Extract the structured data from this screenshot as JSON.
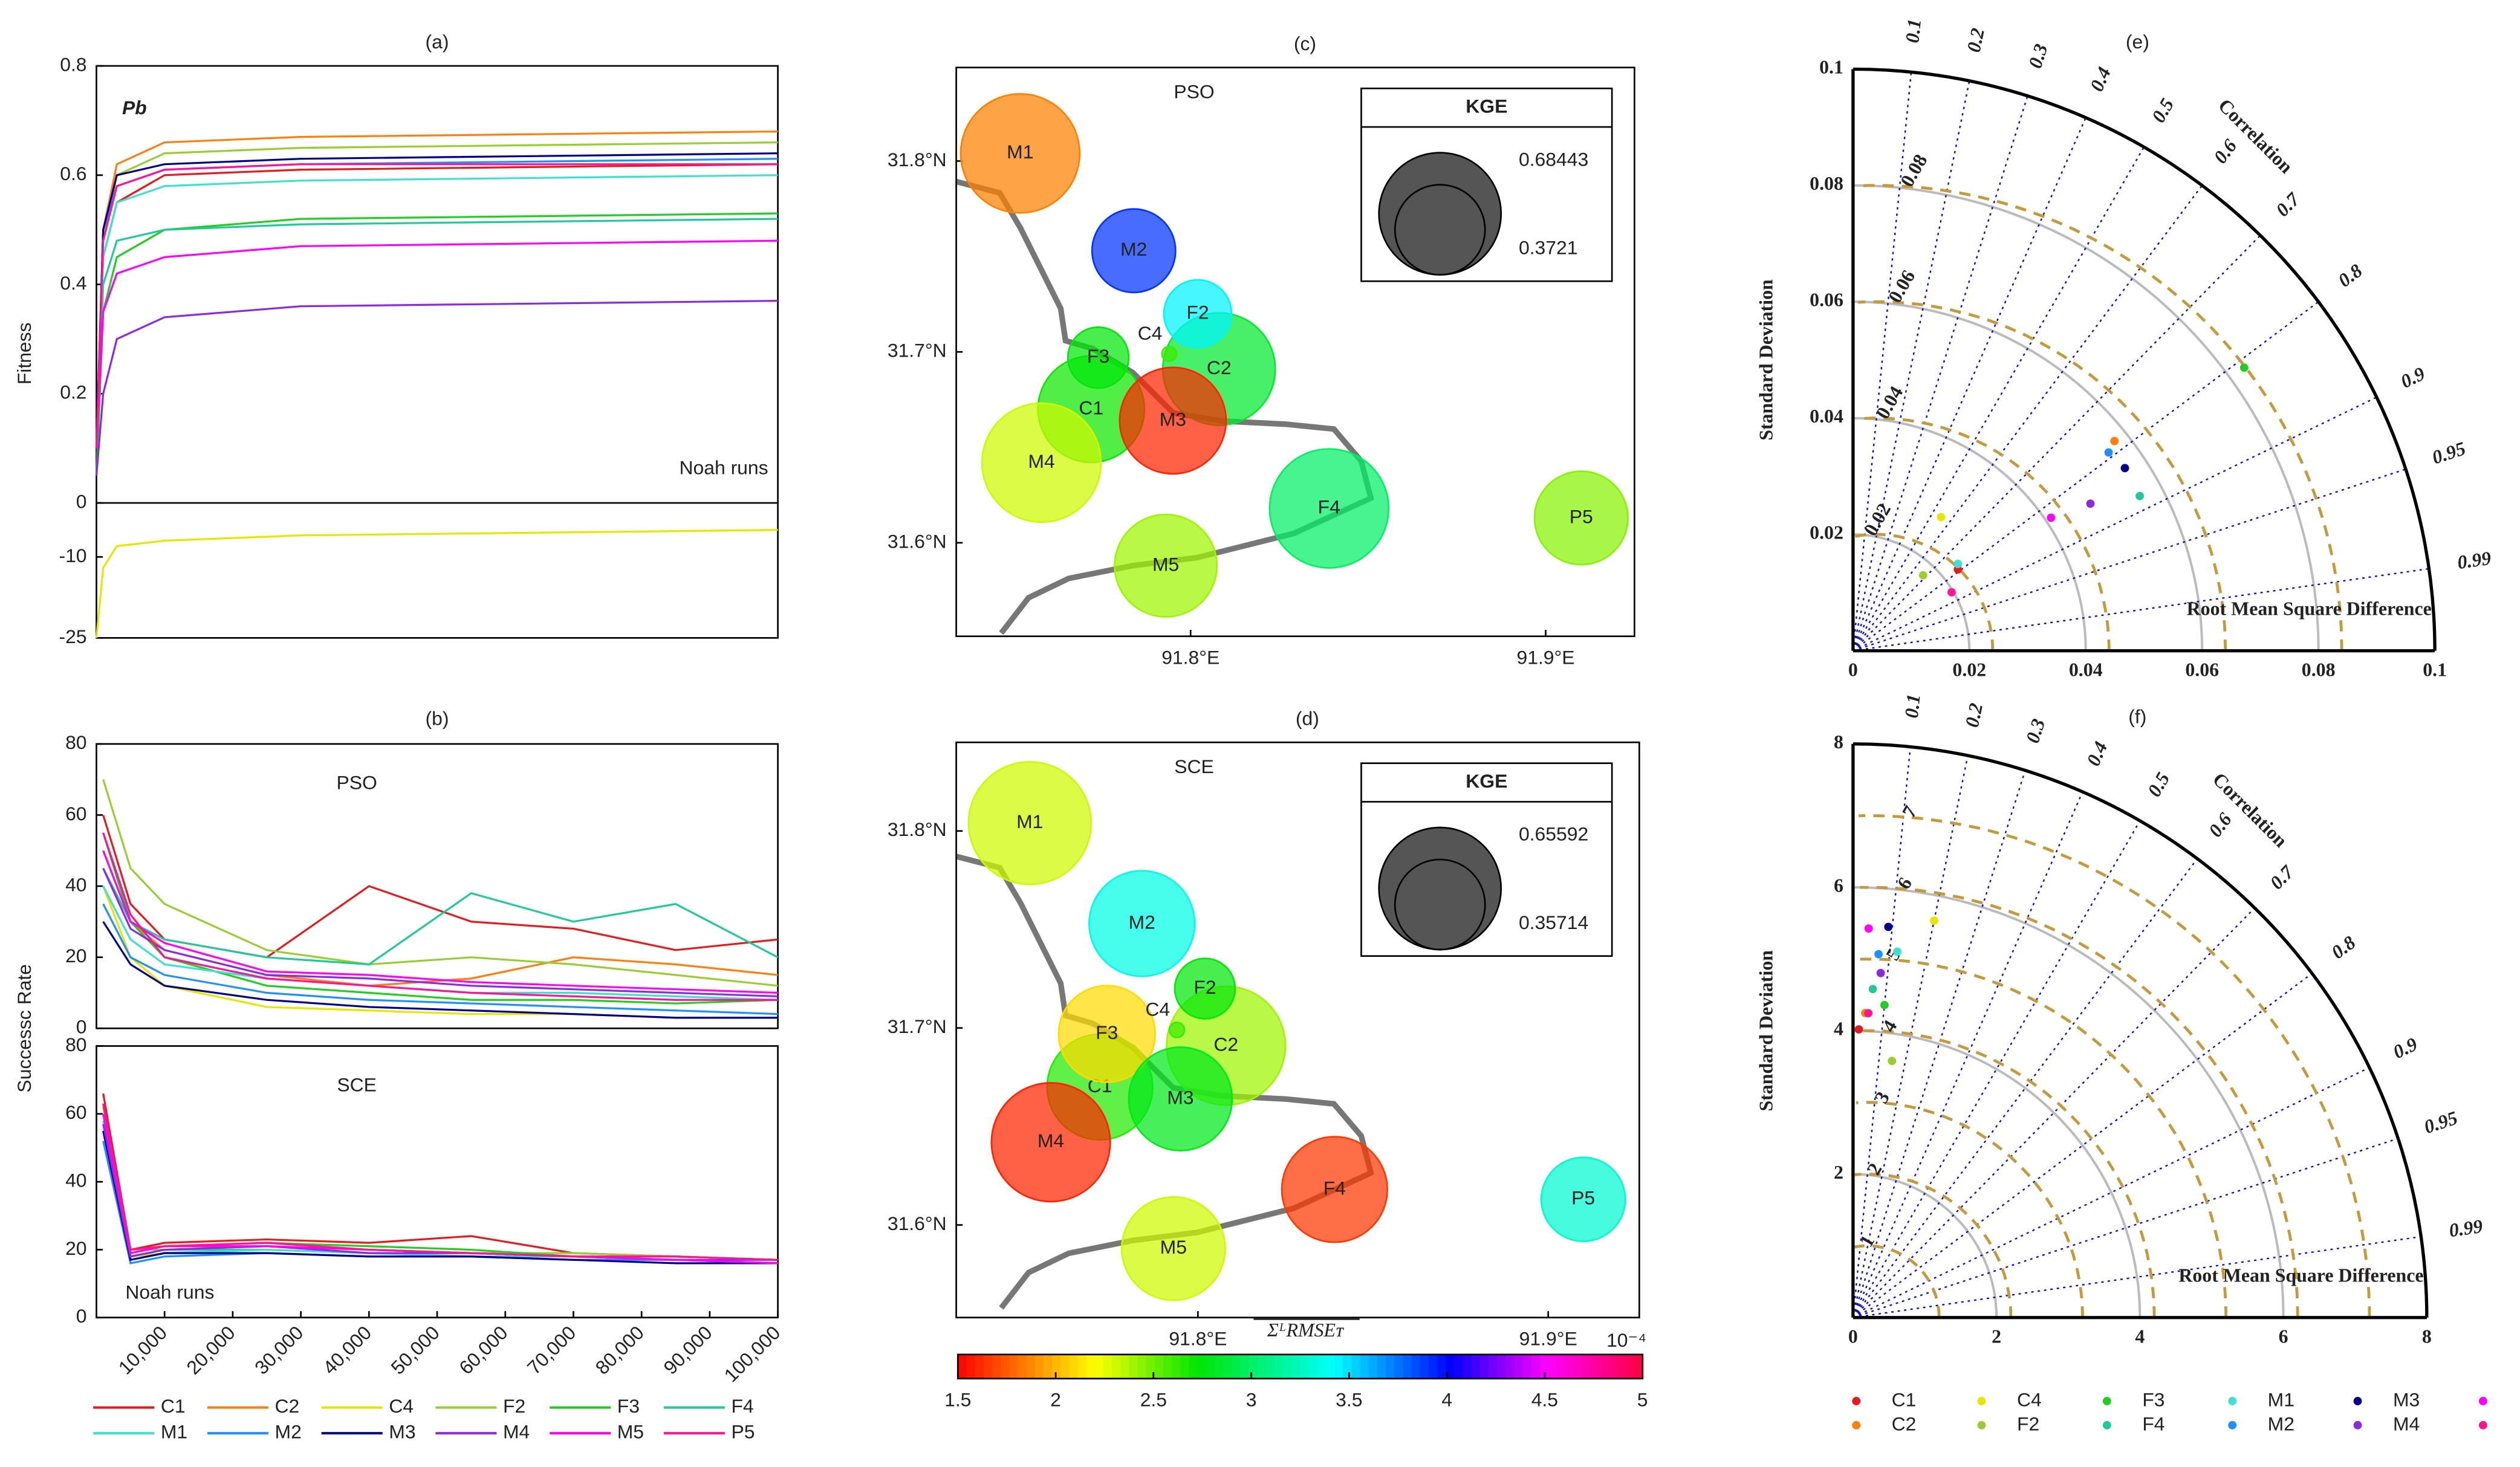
{
  "chart_data": [
    {
      "type": "line",
      "titles": [
        "(a)",
        "(b)"
      ],
      "x": [
        0,
        1000,
        3000,
        10000,
        30000,
        100000
      ],
      "x2": [
        1000,
        5000,
        10000,
        25000,
        40000,
        55000,
        70000,
        85000,
        100000
      ],
      "xlim": [
        0,
        100000
      ],
      "xticks": [
        {
          "value": 10000,
          "label": "10,000"
        },
        {
          "value": 20000,
          "label": "20,000"
        },
        {
          "value": 30000,
          "label": "30,000"
        },
        {
          "value": 40000,
          "label": "40,000"
        },
        {
          "value": 50000,
          "label": "50,000"
        },
        {
          "value": 60000,
          "label": "60,000"
        },
        {
          "value": 70000,
          "label": "70,000"
        },
        {
          "value": 80000,
          "label": "80,000"
        },
        {
          "value": 90000,
          "label": "90,000"
        },
        {
          "value": 100000,
          "label": "100,000"
        }
      ],
      "ylabel": "Fitness",
      "ylim": [
        0,
        0.8
      ],
      "yticks": [
        0,
        0.2,
        0.4,
        0.6,
        0.8
      ],
      "ylim_lower": [
        -25,
        0
      ],
      "yticks_lower": [
        -10,
        -25
      ],
      "annotation": "Pb",
      "note": "Noah runs",
      "ylabel2": "Successc Rate",
      "ylim2": [
        0,
        80
      ],
      "yticks2": [
        0,
        20,
        40,
        60,
        80
      ],
      "panels": [
        "PSO",
        "SCE"
      ],
      "series": [
        {
          "name": "C1",
          "color": "#e41a1c",
          "fitness": [
            0.1,
            0.45,
            0.55,
            0.6,
            0.61,
            0.62
          ],
          "pso": [
            60,
            35,
            25,
            20,
            40,
            30,
            28,
            22,
            25
          ],
          "sce": [
            66,
            20,
            22,
            23,
            22,
            24,
            19,
            18,
            17
          ]
        },
        {
          "name": "C2",
          "color": "#ff7f0e",
          "fitness": [
            0.1,
            0.5,
            0.62,
            0.66,
            0.67,
            0.68
          ],
          "pso": [
            50,
            30,
            22,
            15,
            12,
            14,
            20,
            18,
            15
          ],
          "sce": [
            60,
            19,
            21,
            21,
            20,
            19,
            18,
            18,
            17
          ]
        },
        {
          "name": "C4",
          "color": "#e6e600",
          "axis": "lower",
          "fitness": [
            -25,
            -12,
            -8,
            -7,
            -6,
            -5
          ],
          "pso": [
            40,
            20,
            12,
            6,
            5,
            4,
            4,
            3,
            3
          ],
          "sce": [
            58,
            18,
            19,
            20,
            19,
            18,
            17,
            17,
            16
          ]
        },
        {
          "name": "F2",
          "color": "#9acd32",
          "fitness": [
            0.1,
            0.48,
            0.6,
            0.64,
            0.65,
            0.66
          ],
          "pso": [
            70,
            45,
            35,
            22,
            18,
            20,
            18,
            15,
            12
          ],
          "sce": [
            62,
            20,
            20,
            21,
            20,
            19,
            19,
            18,
            17
          ]
        },
        {
          "name": "F3",
          "color": "#22cc22",
          "fitness": [
            0.05,
            0.35,
            0.45,
            0.5,
            0.52,
            0.53
          ],
          "pso": [
            55,
            30,
            20,
            12,
            10,
            8,
            8,
            7,
            8
          ],
          "sce": [
            60,
            19,
            21,
            22,
            21,
            20,
            18,
            18,
            17
          ]
        },
        {
          "name": "F4",
          "color": "#20c997",
          "fitness": [
            0.1,
            0.4,
            0.48,
            0.5,
            0.51,
            0.52
          ],
          "pso": [
            45,
            30,
            25,
            20,
            18,
            38,
            30,
            35,
            20
          ],
          "sce": [
            55,
            18,
            20,
            20,
            19,
            19,
            18,
            17,
            16
          ]
        },
        {
          "name": "M1",
          "color": "#40e0d0",
          "fitness": [
            0.1,
            0.45,
            0.55,
            0.58,
            0.59,
            0.6
          ],
          "pso": [
            40,
            25,
            18,
            14,
            12,
            10,
            10,
            9,
            8
          ],
          "sce": [
            58,
            17,
            19,
            20,
            19,
            18,
            18,
            17,
            16
          ]
        },
        {
          "name": "M2",
          "color": "#1e90ff",
          "fitness": [
            0.1,
            0.5,
            0.58,
            0.61,
            0.62,
            0.63
          ],
          "pso": [
            35,
            20,
            15,
            10,
            8,
            7,
            6,
            5,
            4
          ],
          "sce": [
            52,
            16,
            18,
            19,
            18,
            18,
            17,
            17,
            16
          ]
        },
        {
          "name": "M3",
          "color": "#00008b",
          "fitness": [
            0.1,
            0.5,
            0.6,
            0.62,
            0.63,
            0.64
          ],
          "pso": [
            30,
            18,
            12,
            8,
            6,
            5,
            4,
            3,
            3
          ],
          "sce": [
            55,
            17,
            19,
            19,
            18,
            18,
            17,
            16,
            16
          ]
        },
        {
          "name": "M4",
          "color": "#8a2be2",
          "fitness": [
            0.05,
            0.2,
            0.3,
            0.34,
            0.36,
            0.37
          ],
          "pso": [
            45,
            28,
            22,
            15,
            14,
            12,
            11,
            10,
            9
          ],
          "sce": [
            57,
            18,
            20,
            21,
            19,
            19,
            18,
            17,
            17
          ]
        },
        {
          "name": "M5",
          "color": "#ff00ff",
          "fitness": [
            0.1,
            0.35,
            0.42,
            0.45,
            0.47,
            0.48
          ],
          "pso": [
            50,
            30,
            24,
            16,
            15,
            13,
            12,
            11,
            10
          ],
          "sce": [
            60,
            19,
            21,
            21,
            20,
            19,
            18,
            17,
            16
          ]
        },
        {
          "name": "P5",
          "color": "#ff1493",
          "fitness": [
            0.1,
            0.48,
            0.58,
            0.61,
            0.62,
            0.62
          ],
          "pso": [
            55,
            32,
            20,
            14,
            12,
            10,
            9,
            8,
            8
          ],
          "sce": [
            63,
            20,
            21,
            22,
            20,
            19,
            18,
            18,
            17
          ]
        }
      ]
    },
    {
      "type": "bubble",
      "title": "(c)",
      "label": "PSO",
      "xlim": [
        91.734,
        91.925
      ],
      "ylim": [
        31.551,
        31.849
      ],
      "xticks": [
        {
          "value": 91.8,
          "label": "91.8°E"
        },
        {
          "value": 91.9,
          "label": "91.9°E"
        }
      ],
      "yticks": [
        {
          "value": 31.6,
          "label": "31.6°N"
        },
        {
          "value": 31.7,
          "label": "31.7°N"
        },
        {
          "value": 31.8,
          "label": "31.8°N"
        }
      ],
      "size_title": "KGE",
      "size_legend": [
        0.68443,
        0.3721
      ],
      "points": [
        {
          "name": "M1",
          "lon": 91.752,
          "lat": 31.804,
          "rmse": 1.85,
          "kge": 0.65
        },
        {
          "name": "M2",
          "lon": 91.784,
          "lat": 31.753,
          "rmse": 3.9,
          "kge": 0.32
        },
        {
          "name": "C2",
          "lon": 91.808,
          "lat": 31.691,
          "rmse": 2.85,
          "kge": 0.58
        },
        {
          "name": "F2",
          "lon": 91.802,
          "lat": 31.72,
          "rmse": 3.45,
          "kge": 0.21
        },
        {
          "name": "C1",
          "lon": 91.772,
          "lat": 31.67,
          "rmse": 2.7,
          "kge": 0.52
        },
        {
          "name": "F3",
          "lon": 91.774,
          "lat": 31.697,
          "rmse": 2.75,
          "kge": 0.17
        },
        {
          "name": "M3",
          "lon": 91.795,
          "lat": 31.664,
          "rmse": 1.6,
          "kge": 0.52
        },
        {
          "name": "M4",
          "lon": 91.758,
          "lat": 31.642,
          "rmse": 2.3,
          "kge": 0.65
        },
        {
          "name": "F4",
          "lon": 91.839,
          "lat": 31.618,
          "rmse": 3.0,
          "kge": 0.65
        },
        {
          "name": "P5",
          "lon": 91.91,
          "lat": 31.613,
          "rmse": 2.45,
          "kge": 0.4
        },
        {
          "name": "M5",
          "lon": 91.793,
          "lat": 31.588,
          "rmse": 2.4,
          "kge": 0.48
        },
        {
          "name": "C4",
          "lon": 91.794,
          "lat": 31.699,
          "rmse": 2.6,
          "kge": 0.01
        }
      ]
    },
    {
      "type": "bubble",
      "title": "(d)",
      "label": "SCE",
      "xlim": [
        91.731,
        91.926
      ],
      "ylim": [
        31.553,
        31.845
      ],
      "xticks": [
        {
          "value": 91.8,
          "label": "91.8°E"
        },
        {
          "value": 91.9,
          "label": "91.9°E"
        }
      ],
      "yticks": [
        {
          "value": 31.6,
          "label": "31.6°N"
        },
        {
          "value": 31.7,
          "label": "31.7°N"
        },
        {
          "value": 31.8,
          "label": "31.8°N"
        }
      ],
      "size_title": "KGE",
      "size_legend": [
        0.65592,
        0.35714
      ],
      "points": [
        {
          "name": "M1",
          "lon": 91.752,
          "lat": 31.804,
          "rmse": 2.3,
          "kge": 0.66
        },
        {
          "name": "M2",
          "lon": 91.784,
          "lat": 31.753,
          "rmse": 3.35,
          "kge": 0.49
        },
        {
          "name": "C2",
          "lon": 91.808,
          "lat": 31.691,
          "rmse": 2.4,
          "kge": 0.62
        },
        {
          "name": "F2",
          "lon": 91.802,
          "lat": 31.72,
          "rmse": 2.75,
          "kge": 0.16
        },
        {
          "name": "C1",
          "lon": 91.772,
          "lat": 31.67,
          "rmse": 2.65,
          "kge": 0.49
        },
        {
          "name": "F3",
          "lon": 91.774,
          "lat": 31.697,
          "rmse": 2.1,
          "kge": 0.41
        },
        {
          "name": "M3",
          "lon": 91.795,
          "lat": 31.664,
          "rmse": 2.8,
          "kge": 0.47
        },
        {
          "name": "M4",
          "lon": 91.758,
          "lat": 31.642,
          "rmse": 1.6,
          "kge": 0.62
        },
        {
          "name": "F4",
          "lon": 91.839,
          "lat": 31.618,
          "rmse": 1.65,
          "kge": 0.49
        },
        {
          "name": "P5",
          "lon": 91.91,
          "lat": 31.613,
          "rmse": 3.3,
          "kge": 0.31
        },
        {
          "name": "M5",
          "lon": 91.793,
          "lat": 31.588,
          "rmse": 2.3,
          "kge": 0.47
        },
        {
          "name": "C4",
          "lon": 91.794,
          "lat": 31.699,
          "rmse": 2.6,
          "kge": 0.01
        }
      ]
    },
    {
      "type": "taylor",
      "titles": [
        "(e)",
        "(f)"
      ],
      "ylabel": "Standard Deviation",
      "rlabel": "Correlation",
      "rmsd_label": "Root Mean Square Difference",
      "corr_ticks": [
        0.1,
        0.2,
        0.3,
        0.4,
        0.5,
        0.6,
        0.7,
        0.8,
        0.9,
        0.95,
        0.99
      ],
      "e": {
        "rlim": [
          0,
          0.1
        ],
        "ticks": [
          0,
          0.02,
          0.04,
          0.06,
          0.08,
          0.1
        ],
        "rmsd_ticks": [
          0.02,
          0.04,
          0.06,
          0.08
        ],
        "reference": 0.004
      },
      "f": {
        "rlim": [
          0,
          8
        ],
        "ticks": [
          0,
          2,
          4,
          6,
          8
        ],
        "rmsd_ticks": [
          1,
          2,
          3,
          4,
          5,
          6,
          7
        ],
        "reference": 0.2
      },
      "series": [
        {
          "name": "C1",
          "color": "#e41a1c",
          "e": [
            0.0228,
            0.79
          ],
          "f": [
            4.02,
            0.02
          ]
        },
        {
          "name": "C2",
          "color": "#ff7f0e",
          "e": [
            0.0576,
            0.78
          ],
          "f": [
            4.25,
            0.04
          ]
        },
        {
          "name": "C4",
          "color": "#e6e600",
          "e": [
            0.0275,
            0.55
          ],
          "f": [
            5.65,
            0.2
          ]
        },
        {
          "name": "F2",
          "color": "#9acd32",
          "e": [
            0.0177,
            0.68
          ],
          "f": [
            3.62,
            0.15
          ]
        },
        {
          "name": "F3",
          "color": "#22cc22",
          "e": [
            0.083,
            0.81
          ],
          "f": [
            4.38,
            0.1
          ]
        },
        {
          "name": "F4",
          "color": "#20c997",
          "e": [
            0.056,
            0.88
          ],
          "f": [
            4.59,
            0.06
          ]
        },
        {
          "name": "M1",
          "color": "#40e0d0",
          "e": [
            0.0234,
            0.77
          ],
          "f": [
            5.14,
            0.12
          ]
        },
        {
          "name": "M2",
          "color": "#1e90ff",
          "e": [
            0.0556,
            0.79
          ],
          "f": [
            5.08,
            0.07
          ]
        },
        {
          "name": "M3",
          "color": "#00008b",
          "e": [
            0.0563,
            0.83
          ],
          "f": [
            5.47,
            0.09
          ]
        },
        {
          "name": "M4",
          "color": "#8a2be2",
          "e": [
            0.048,
            0.85
          ],
          "f": [
            4.82,
            0.08
          ]
        },
        {
          "name": "M5",
          "color": "#ff00ff",
          "e": [
            0.041,
            0.83
          ],
          "f": [
            5.43,
            0.04
          ]
        },
        {
          "name": "P5",
          "color": "#ff1493",
          "e": [
            0.0197,
            0.86
          ],
          "f": [
            4.25,
            0.05
          ]
        }
      ]
    }
  ],
  "colorbar": {
    "label": "ΣᴸRMSEᴛ",
    "exponent": "10⁻⁴",
    "lim": [
      1.5,
      5
    ],
    "ticks": [
      1.5,
      2,
      2.5,
      3,
      3.5,
      4,
      4.5,
      5
    ]
  }
}
